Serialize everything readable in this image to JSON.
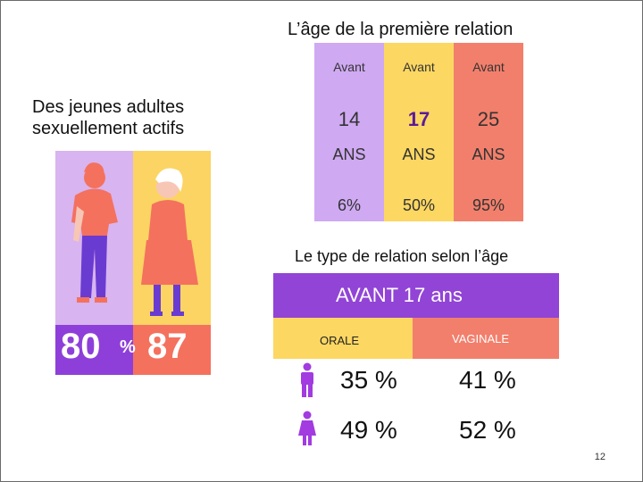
{
  "title_age": "L’âge de la première relation",
  "left_caption": [
    "Des jeunes adultes",
    "sexuellement actifs"
  ],
  "illustration": {
    "stat_left": "80",
    "stat_symbol": "%",
    "stat_right": "87",
    "colors": {
      "left_bg": "#d8b4f0",
      "right_bg": "#fbd463",
      "purple": "#8e3fd9",
      "coral": "#f4715e"
    }
  },
  "age_table": {
    "columns": [
      {
        "avant": "Avant",
        "age": "14",
        "unit": "ANS",
        "pct": "6%"
      },
      {
        "avant": "Avant",
        "age": "17",
        "unit": "ANS",
        "pct": "50%"
      },
      {
        "avant": "Avant",
        "age": "25",
        "unit": "ANS",
        "pct": "95%"
      }
    ]
  },
  "title_type": "Le type de relation selon l’âge",
  "type_table": {
    "banner": "AVANT 17 ans",
    "headers": {
      "orale": "ORALE",
      "vaginale": "VAGINALE"
    },
    "rows": [
      {
        "icon": "male-icon",
        "orale": "35 %",
        "vaginale": "41 %"
      },
      {
        "icon": "female-icon",
        "orale": "49 %",
        "vaginale": "52 %"
      }
    ]
  },
  "page_number": "12"
}
